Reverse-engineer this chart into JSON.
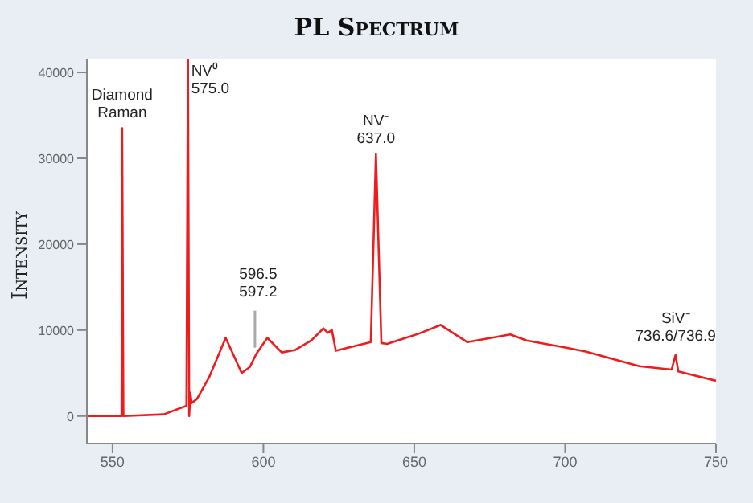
{
  "chart_data": {
    "type": "line",
    "title": "PL Spectrum",
    "ylabel": "Intensity",
    "x": [
      542,
      553,
      553.2,
      553.6,
      567,
      574.5,
      575,
      575.4,
      575.8,
      576.2,
      578,
      582,
      587.5,
      592.8,
      595.5,
      597.6,
      601.3,
      606.1,
      610.6,
      615.9,
      619.9,
      621.3,
      622.7,
      624,
      635.6,
      637.3,
      639.1,
      641,
      651.6,
      658.7,
      667.6,
      681.8,
      687.2,
      699.7,
      706.8,
      724.6,
      735.3,
      736.6,
      737.5,
      750
    ],
    "series": [
      {
        "color": "#ee1c1c",
        "values": [
          0,
          0,
          33500,
          0,
          200,
          1200,
          41500,
          0,
          2700,
          1500,
          2000,
          4500,
          9100,
          5000,
          5700,
          7200,
          9100,
          7400,
          7700,
          8800,
          10200,
          9700,
          10000,
          7600,
          8600,
          30500,
          8500,
          8400,
          9600,
          10600,
          8600,
          9500,
          8800,
          8000,
          7500,
          5800,
          5400,
          7100,
          5200,
          4100
        ]
      }
    ],
    "xlim": [
      541.5,
      750
    ],
    "xticks": [
      550,
      600,
      650,
      700,
      750
    ],
    "ylim": [
      -3200,
      41500
    ],
    "yticks": [
      0,
      10000,
      20000,
      30000,
      40000
    ],
    "grid": false,
    "legend": false,
    "marker": "none",
    "line_style": "solid",
    "annotations": [
      {
        "text": "Diamond\nRaman",
        "x": 553.2,
        "y": 33500
      },
      {
        "text": "NV⁰\n575.0",
        "x": 575,
        "y": 41500
      },
      {
        "text": "596.5\n597.2",
        "x": 597.2,
        "y": 7400
      },
      {
        "text": "NV⁻\n637.0",
        "x": 637.3,
        "y": 30500
      },
      {
        "text": "SiV⁻\n736.6/736.9",
        "x": 736.6,
        "y": 7100
      }
    ]
  }
}
